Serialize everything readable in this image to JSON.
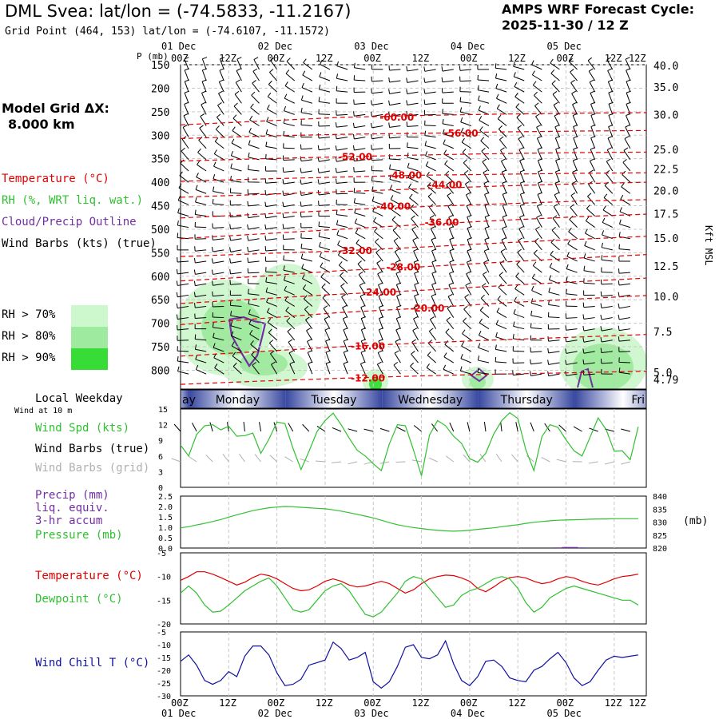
{
  "header": {
    "title": "DML Svea:  lat/lon = (-74.5833, -11.2167)",
    "subtitle": "Grid Point (464, 153) lat/lon = (-74.6107, -11.1572)",
    "cycle_line1": "AMPS WRF Forecast Cycle:",
    "cycle_line2": "2025-11-30 / 12  Z",
    "grid_line1": "Model Grid ΔX:",
    "grid_line2": "8.000 km"
  },
  "legend": {
    "temperature": "Temperature (°C)",
    "rh": "RH (%, WRT liq. wat.)",
    "cloud": "Cloud/Precip Outline",
    "wind": "Wind Barbs (kts) (true)",
    "rh70": "RH > 70%",
    "rh80": "RH > 80%",
    "rh90": "RH > 90%",
    "weekday": "Local Weekday",
    "wind10": "Wind at 10 m",
    "wspd": "Wind Spd (kts)",
    "wbarbs_true": "Wind Barbs (true)",
    "wbarbs_grid": "Wind Barbs (grid)",
    "precip1": "Precip (mm)",
    "precip2": "liq. equiv.",
    "precip3": "3-hr accum",
    "pressure": "Pressure (mb)",
    "temp2": "Temperature (°C)",
    "dewpoint": "Dewpoint (°C)",
    "windchill": "Wind Chill T (°C)"
  },
  "colors": {
    "temperature": "#e00000",
    "rh": "#30c030",
    "cloud": "#7030a0",
    "wind_grid": "#b0b0b0",
    "rh70": "#cdf7cd",
    "rh80": "#9eea9e",
    "rh90": "#37dc37",
    "windchill": "#1010a0",
    "weekday_band": "#3848a0"
  },
  "chart_data": {
    "type": "line",
    "time_axis": {
      "x": [
        0,
        6,
        12,
        18,
        24,
        30,
        36,
        42,
        48,
        54,
        60,
        66,
        72,
        78,
        84,
        90,
        96,
        102,
        108,
        114,
        120
      ],
      "hour_labels": [
        "00Z",
        "12Z",
        "00Z",
        "12Z",
        "00Z",
        "12Z",
        "00Z",
        "12Z",
        "00Z",
        "12Z",
        "12Z"
      ],
      "hour_label_x": [
        0,
        6,
        12,
        18,
        24,
        30,
        36,
        42,
        48,
        54,
        57
      ],
      "date_labels": [
        "01 Dec",
        "02 Dec",
        "03 Dec",
        "04 Dec",
        "05 Dec"
      ],
      "date_label_x": [
        0,
        12,
        24,
        36,
        48
      ],
      "weekdays": [
        {
          "name": "ay",
          "start": -2.9,
          "end": 1.1
        },
        {
          "name": "Monday",
          "start": 1.1,
          "end": 13.1
        },
        {
          "name": "Tuesday",
          "start": 13.1,
          "end": 25.1
        },
        {
          "name": "Wednesday",
          "start": 25.1,
          "end": 37.1
        },
        {
          "name": "Thursday",
          "start": 37.1,
          "end": 49.1
        },
        {
          "name": "Fri",
          "start": 49.1,
          "end": 61.1
        }
      ]
    },
    "cross_section": {
      "ylabel": "P (mb)",
      "pressure_ticks": [
        "150",
        "200",
        "250",
        "300",
        "350",
        "400",
        "450",
        "500",
        "550",
        "600",
        "650",
        "700",
        "750",
        "800"
      ],
      "pressure_levels": [
        150,
        200,
        250,
        300,
        350,
        400,
        450,
        500,
        550,
        600,
        650,
        700,
        750,
        800
      ],
      "ylim": [
        150,
        840
      ],
      "height_ticks": [
        "40.0",
        "35.0",
        "30.0",
        "25.0",
        "22.5",
        "20.0",
        "17.5",
        "15.0",
        "12.5",
        "10.0",
        "7.5",
        "5.0",
        "4.79"
      ],
      "height_tick_p": [
        152,
        198,
        256,
        330,
        372,
        418,
        467,
        519,
        578,
        643,
        718,
        804,
        820
      ],
      "height_label": "Kft MSL",
      "temperature_contours": [
        {
          "label": "-60.00",
          "label_t": 24.8,
          "label_p": 262,
          "p": [
            278,
            270,
            262,
            258,
            255,
            253,
            252
          ]
        },
        {
          "label": "-56.00",
          "label_t": 32.8,
          "label_p": 296,
          "p": [
            307,
            302,
            298,
            296,
            293,
            291,
            290
          ]
        },
        {
          "label": "-52.00",
          "label_t": 19.6,
          "label_p": 346,
          "p": [
            355,
            350,
            346,
            342,
            339,
            337,
            336
          ]
        },
        {
          "label": "-48.00",
          "label_t": 25.8,
          "label_p": 385,
          "p": [
            398,
            393,
            389,
            385,
            383,
            381,
            380
          ]
        },
        {
          "label": "-44.00",
          "label_t": 30.8,
          "label_p": 406,
          "p": [
            432,
            426,
            420,
            414,
            408,
            403,
            400
          ]
        },
        {
          "label": "-40.00",
          "label_t": 24.4,
          "label_p": 452,
          "p": [
            476,
            468,
            459,
            452,
            446,
            440,
            437
          ]
        },
        {
          "label": "-36.00",
          "label_t": 30.4,
          "label_p": 486,
          "p": [
            520,
            510,
            500,
            490,
            481,
            473,
            468
          ]
        },
        {
          "label": "-32.00",
          "label_t": 19.6,
          "label_p": 546,
          "p": [
            558,
            552,
            546,
            538,
            529,
            521,
            515
          ]
        },
        {
          "label": "-28.00",
          "label_t": 25.6,
          "label_p": 581,
          "p": [
            610,
            600,
            588,
            580,
            570,
            561,
            554
          ]
        },
        {
          "label": "-24.00",
          "label_t": 22.6,
          "label_p": 634,
          "p": [
            658,
            648,
            638,
            630,
            620,
            611,
            604
          ]
        },
        {
          "label": "-20.00",
          "label_t": 28.6,
          "label_p": 668,
          "p": [
            703,
            690,
            677,
            668,
            657,
            648,
            641
          ]
        },
        {
          "label": "-16.00",
          "label_t": 21.2,
          "label_p": 749,
          "p": [
            770,
            760,
            750,
            742,
            735,
            729,
            724
          ]
        },
        {
          "label": "-12.00",
          "label_t": 21.2,
          "label_p": 817,
          "p": [
            830,
            823,
            817,
            812,
            808,
            805,
            802
          ]
        }
      ],
      "contour_t": [
        0,
        10,
        20,
        30,
        40,
        50,
        58
      ]
    },
    "wind_10m": {
      "ylim": [
        0,
        15
      ],
      "yticks": [
        "15",
        "12",
        "9",
        "6",
        "3",
        "0"
      ],
      "speed_kts": [
        8.1,
        6.0,
        10.1,
        11.8,
        12.0,
        11.0,
        11.7,
        9.8,
        9.9,
        10.4,
        6.5,
        9.2,
        12.5,
        12.2,
        7.5,
        3.4,
        6.9,
        10.7,
        12.8,
        14.2,
        12.0,
        9.4,
        7.1,
        6.0,
        4.5,
        3.2,
        8.3,
        12.0,
        11.8,
        7.2,
        2.2,
        10.0,
        12.8,
        11.8,
        9.8,
        8.4,
        5.5,
        4.8,
        6.5,
        10.2,
        12.8,
        14.3,
        13.2,
        7.2,
        3.2,
        9.7,
        12.0,
        11.5,
        9.1,
        7.0,
        6.0,
        9.6,
        13.3,
        11.1,
        6.9,
        7.0,
        5.3,
        11.6
      ]
    },
    "precip_pressure": {
      "precip_ylim": [
        0,
        2.5
      ],
      "precip_yticks": [
        "2.5",
        "2.0",
        "1.5",
        "1.0",
        "0.5",
        "0.0"
      ],
      "pressure_ylim": [
        820,
        840
      ],
      "pressure_yticks": [
        "840",
        "835",
        "830",
        "825",
        "820"
      ],
      "pressure_unit": "(mb)",
      "pressure_mb": [
        827.8,
        828.2,
        828.9,
        829.5,
        830.2,
        831.0,
        831.9,
        832.8,
        833.6,
        834.4,
        835.0,
        835.5,
        835.8,
        836.0,
        835.9,
        835.7,
        835.5,
        835.3,
        835.1,
        834.7,
        834.2,
        833.6,
        833.0,
        832.3,
        831.6,
        830.7,
        829.8,
        829.0,
        828.4,
        827.9,
        827.5,
        827.1,
        826.8,
        826.6,
        826.5,
        826.6,
        826.8,
        827.2,
        827.5,
        827.8,
        828.2,
        828.6,
        829.0,
        829.5,
        829.9,
        830.2,
        830.5,
        830.7,
        830.8,
        830.9,
        831.0,
        831.1,
        831.2,
        831.2,
        831.3,
        831.3,
        831.3,
        831.3
      ],
      "precip_mm": [
        0,
        0,
        0,
        0,
        0,
        0,
        0,
        0,
        0,
        0,
        0,
        0,
        0,
        0,
        0,
        0,
        0,
        0,
        0,
        0,
        0,
        0,
        0,
        0,
        0,
        0,
        0,
        0,
        0,
        0,
        0,
        0,
        0,
        0,
        0,
        0,
        0,
        0,
        0,
        0,
        0,
        0,
        0,
        0,
        0,
        0,
        0,
        0.03,
        0.05,
        0.05,
        0.03,
        0,
        0,
        0,
        0,
        0,
        0,
        0
      ]
    },
    "temperature_dewpoint": {
      "ylim": [
        -20,
        -5
      ],
      "yticks": [
        "-5",
        "-10",
        "-15",
        "-20"
      ],
      "temperature_c": [
        -10.8,
        -10.0,
        -9.0,
        -9.0,
        -9.5,
        -10.2,
        -11.0,
        -11.8,
        -11.2,
        -10.2,
        -9.5,
        -9.8,
        -10.5,
        -11.5,
        -12.5,
        -13.0,
        -12.8,
        -12.0,
        -11.0,
        -10.5,
        -11.0,
        -11.8,
        -12.2,
        -12.0,
        -11.5,
        -11.0,
        -11.5,
        -12.5,
        -13.5,
        -12.8,
        -11.5,
        -10.5,
        -10.0,
        -9.7,
        -9.8,
        -10.3,
        -11.0,
        -12.5,
        -13.2,
        -12.2,
        -11.0,
        -10.2,
        -10.0,
        -10.3,
        -11.0,
        -11.5,
        -11.2,
        -10.5,
        -10.0,
        -10.3,
        -11.0,
        -11.5,
        -11.8,
        -11.2,
        -10.5,
        -10.0,
        -9.8,
        -9.5
      ],
      "dewpoint_c": [
        -13.5,
        -12.0,
        -13.5,
        -16.0,
        -17.5,
        -17.3,
        -16.0,
        -14.5,
        -13.0,
        -12.0,
        -11.0,
        -10.3,
        -12.0,
        -14.5,
        -17.0,
        -17.5,
        -17.0,
        -15.0,
        -13.0,
        -12.0,
        -11.5,
        -13.0,
        -15.5,
        -18.0,
        -18.5,
        -17.5,
        -15.5,
        -13.5,
        -11.0,
        -10.0,
        -10.5,
        -12.5,
        -14.5,
        -16.5,
        -16.0,
        -14.0,
        -13.0,
        -12.5,
        -11.5,
        -10.5,
        -10.0,
        -10.5,
        -12.5,
        -15.5,
        -17.5,
        -16.5,
        -14.5,
        -13.5,
        -12.5,
        -12.0,
        -12.5,
        -13.0,
        -13.5,
        -14.0,
        -14.5,
        -15.0,
        -15.0,
        -16.0
      ]
    },
    "wind_chill": {
      "ylim": [
        -30,
        -5
      ],
      "yticks": [
        "-5",
        "-10",
        "-15",
        "-20",
        "-25",
        "-30"
      ],
      "wind_chill_c": [
        -16.5,
        -14.0,
        -18.0,
        -24.0,
        -25.5,
        -24.0,
        -20.5,
        -22.5,
        -14.5,
        -10.5,
        -10.5,
        -14.0,
        -21.0,
        -26.0,
        -25.5,
        -23.5,
        -18.0,
        -17.0,
        -16.0,
        -9.0,
        -11.5,
        -16.0,
        -15.0,
        -13.0,
        -24.5,
        -27.0,
        -24.5,
        -18.5,
        -11.0,
        -10.0,
        -15.0,
        -15.5,
        -14.0,
        -8.5,
        -17.5,
        -24.0,
        -26.0,
        -22.5,
        -16.5,
        -16.0,
        -18.5,
        -23.0,
        -24.0,
        -24.5,
        -20.0,
        -18.5,
        -15.5,
        -13.0,
        -17.0,
        -23.0,
        -26.0,
        -24.5,
        -20.0,
        -16.0,
        -14.5,
        -15.0,
        -14.5,
        -14.0
      ]
    }
  }
}
